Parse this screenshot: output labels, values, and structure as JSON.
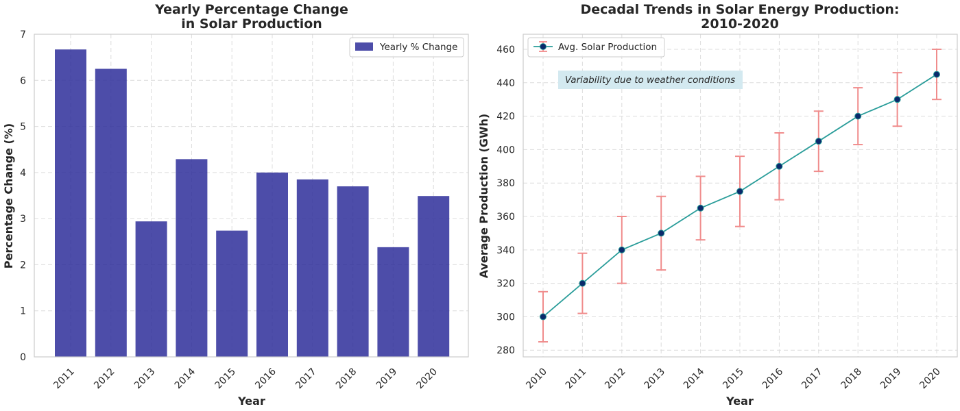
{
  "chart_data": [
    {
      "type": "bar",
      "title_lines": [
        "Yearly Percentage Change",
        "in Solar Production"
      ],
      "xlabel": "Year",
      "ylabel": "Percentage Change (%)",
      "categories": [
        "2011",
        "2012",
        "2013",
        "2014",
        "2015",
        "2016",
        "2017",
        "2018",
        "2019",
        "2020"
      ],
      "series": [
        {
          "name": "Yearly % Change",
          "values": [
            6.67,
            6.25,
            2.94,
            4.29,
            2.74,
            4.0,
            3.85,
            3.7,
            2.38,
            3.49
          ],
          "color": "#2e2e9a"
        }
      ],
      "ylim": [
        0,
        7
      ],
      "yticks": [
        0,
        1,
        2,
        3,
        4,
        5,
        6,
        7
      ],
      "grid": true,
      "legend_position": "top-right"
    },
    {
      "type": "line",
      "title_lines": [
        "Decadal Trends in Solar Energy Production:",
        "2010-2020"
      ],
      "xlabel": "Year",
      "ylabel": "Average Production (GWh)",
      "x": [
        "2010",
        "2011",
        "2012",
        "2013",
        "2014",
        "2015",
        "2016",
        "2017",
        "2018",
        "2019",
        "2020"
      ],
      "series": [
        {
          "name": "Avg. Solar Production",
          "values": [
            300,
            320,
            340,
            350,
            365,
            375,
            390,
            405,
            420,
            430,
            445
          ],
          "error": [
            15,
            18,
            20,
            22,
            19,
            21,
            20,
            18,
            17,
            16,
            15
          ],
          "line_color": "#2a9d9a",
          "marker_color": "#0b2a6b",
          "error_color": "#f08c8c"
        }
      ],
      "ylim": [
        276,
        469
      ],
      "yticks": [
        280,
        300,
        320,
        340,
        360,
        380,
        400,
        420,
        440,
        460
      ],
      "grid": true,
      "legend_position": "top-left",
      "annotation": {
        "text": "Variability due to weather conditions",
        "background": "#d3e9f0"
      }
    }
  ]
}
